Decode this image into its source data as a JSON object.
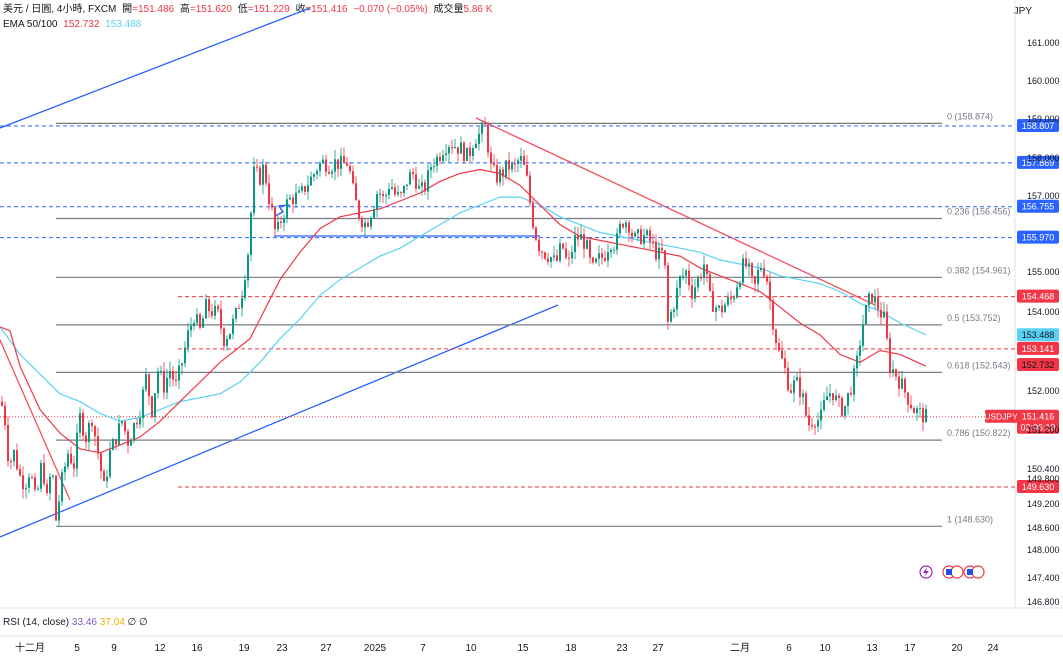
{
  "header": {
    "symbol": "美元 / 日圓, 4小時, FXCM",
    "open_label": "開",
    "open": "=151.486",
    "high_label": "高",
    "high": "=151.620",
    "low_label": "低",
    "low": "=151.229",
    "close_label": "收",
    "close": "=151.416",
    "change": "−0.070 (−0.05%)",
    "volume_label": "成交量",
    "volume": "5.86 K",
    "ema_label": "EMA 50/100",
    "ema50": "152.732",
    "ema100": "153.488"
  },
  "currency": "JPY",
  "rsi": {
    "label": "RSI (14, close)",
    "value1": "33.46",
    "value2": "37.04",
    "extra": "∅ ∅"
  },
  "colors": {
    "up": "#089981",
    "down": "#f23645",
    "ema50": "#f23645",
    "ema100": "#5ad2f4",
    "trend_blue": "#2962ff",
    "trend_red": "#f7525f",
    "fib": "#787b86",
    "hline_blue": "#2962ff",
    "hline_red": "#f23645"
  },
  "chart_data": {
    "type": "candlestick",
    "y_range": [
      146.5,
      162.2
    ],
    "x_ticks": [
      "十二月",
      "5",
      "9",
      "12",
      "16",
      "19",
      "23",
      "27",
      "2025",
      "7",
      "10",
      "15",
      "18",
      "23",
      "27",
      "二月",
      "6",
      "10",
      "13",
      "17",
      "20",
      "24"
    ],
    "y_ticks": [
      "161.000",
      "160.000",
      "159.000",
      "158.000",
      "157.000",
      "155.000",
      "154.000",
      "152.000",
      "151.200",
      "150.400",
      "149.800",
      "149.200",
      "148.600",
      "148.000",
      "147.400",
      "146.800"
    ],
    "close_path": [
      [
        0,
        151.8
      ],
      [
        4,
        151.6
      ],
      [
        9,
        150.2
      ],
      [
        14,
        150.5
      ],
      [
        20,
        149.9
      ],
      [
        25,
        149.7
      ],
      [
        30,
        150.1
      ],
      [
        36,
        149.2
      ],
      [
        42,
        150.3
      ],
      [
        47,
        149.3
      ],
      [
        52,
        150.2
      ],
      [
        56,
        148.8
      ],
      [
        62,
        149.8
      ],
      [
        68,
        150.5
      ],
      [
        74,
        150.2
      ],
      [
        80,
        151.4
      ],
      [
        86,
        150.9
      ],
      [
        92,
        151.4
      ],
      [
        100,
        150.2
      ],
      [
        104,
        149.6
      ],
      [
        110,
        150.5
      ],
      [
        116,
        150.9
      ],
      [
        122,
        151.3
      ],
      [
        128,
        150.8
      ],
      [
        134,
        151.2
      ],
      [
        140,
        151.6
      ],
      [
        146,
        152.4
      ],
      [
        152,
        151.6
      ],
      [
        158,
        152.6
      ],
      [
        164,
        152.2
      ],
      [
        170,
        152.6
      ],
      [
        176,
        152.2
      ],
      [
        182,
        152.8
      ],
      [
        188,
        153.5
      ],
      [
        194,
        154.0
      ],
      [
        200,
        153.6
      ],
      [
        206,
        154.2
      ],
      [
        212,
        154.1
      ],
      [
        218,
        154.0
      ],
      [
        224,
        153.4
      ],
      [
        230,
        153.6
      ],
      [
        236,
        154.0
      ],
      [
        242,
        154.6
      ],
      [
        248,
        155.6
      ],
      [
        254,
        157.6
      ],
      [
        260,
        157.5
      ],
      [
        264,
        157.8
      ],
      [
        268,
        157.1
      ],
      [
        272,
        156.6
      ],
      [
        276,
        156.0
      ],
      [
        282,
        156.5
      ],
      [
        288,
        156.9
      ],
      [
        294,
        157.0
      ],
      [
        300,
        157.0
      ],
      [
        306,
        157.3
      ],
      [
        312,
        157.5
      ],
      [
        318,
        157.8
      ],
      [
        324,
        157.9
      ],
      [
        330,
        157.8
      ],
      [
        336,
        157.9
      ],
      [
        342,
        157.8
      ],
      [
        348,
        157.9
      ],
      [
        354,
        157.0
      ],
      [
        360,
        156.5
      ],
      [
        366,
        156.3
      ],
      [
        372,
        156.7
      ],
      [
        378,
        157.2
      ],
      [
        384,
        156.9
      ],
      [
        390,
        157.4
      ],
      [
        396,
        157.0
      ],
      [
        402,
        157.0
      ],
      [
        408,
        157.5
      ],
      [
        414,
        157.6
      ],
      [
        420,
        157.1
      ],
      [
        426,
        157.3
      ],
      [
        432,
        157.9
      ],
      [
        438,
        158.0
      ],
      [
        444,
        158.3
      ],
      [
        450,
        158.4
      ],
      [
        456,
        158.3
      ],
      [
        462,
        158.2
      ],
      [
        468,
        158.0
      ],
      [
        474,
        158.5
      ],
      [
        480,
        158.6
      ],
      [
        486,
        158.8
      ],
      [
        490,
        157.8
      ],
      [
        496,
        157.5
      ],
      [
        502,
        157.6
      ],
      [
        508,
        157.8
      ],
      [
        514,
        157.7
      ],
      [
        520,
        158.0
      ],
      [
        526,
        157.6
      ],
      [
        532,
        156.5
      ],
      [
        538,
        155.8
      ],
      [
        544,
        155.6
      ],
      [
        550,
        155.5
      ],
      [
        556,
        155.3
      ],
      [
        562,
        155.8
      ],
      [
        568,
        155.2
      ],
      [
        574,
        155.9
      ],
      [
        580,
        156.0
      ],
      [
        586,
        155.8
      ],
      [
        592,
        155.1
      ],
      [
        598,
        155.4
      ],
      [
        604,
        155.5
      ],
      [
        610,
        155.9
      ],
      [
        616,
        155.8
      ],
      [
        622,
        156.4
      ],
      [
        628,
        156.4
      ],
      [
        634,
        155.9
      ],
      [
        640,
        156.0
      ],
      [
        646,
        156.0
      ],
      [
        652,
        155.8
      ],
      [
        658,
        155.5
      ],
      [
        664,
        155.6
      ],
      [
        668,
        153.8
      ],
      [
        674,
        154.3
      ],
      [
        680,
        154.9
      ],
      [
        686,
        155.1
      ],
      [
        692,
        154.6
      ],
      [
        698,
        154.9
      ],
      [
        704,
        155.3
      ],
      [
        710,
        154.4
      ],
      [
        716,
        154.2
      ],
      [
        720,
        154.1
      ],
      [
        726,
        154.3
      ],
      [
        732,
        154.4
      ],
      [
        738,
        154.9
      ],
      [
        744,
        155.3
      ],
      [
        748,
        155.2
      ],
      [
        754,
        154.6
      ],
      [
        760,
        155.3
      ],
      [
        766,
        155.1
      ],
      [
        772,
        154.0
      ],
      [
        778,
        153.1
      ],
      [
        784,
        152.7
      ],
      [
        790,
        152.1
      ],
      [
        796,
        152.3
      ],
      [
        802,
        152.0
      ],
      [
        808,
        151.2
      ],
      [
        814,
        151.4
      ],
      [
        820,
        151.3
      ],
      [
        826,
        151.9
      ],
      [
        832,
        152.1
      ],
      [
        838,
        151.7
      ],
      [
        844,
        151.6
      ],
      [
        850,
        152.1
      ],
      [
        856,
        152.6
      ],
      [
        862,
        153.7
      ],
      [
        868,
        154.3
      ],
      [
        872,
        154.5
      ],
      [
        878,
        154.2
      ],
      [
        884,
        153.9
      ],
      [
        890,
        152.7
      ],
      [
        896,
        152.5
      ],
      [
        902,
        152.2
      ],
      [
        908,
        151.9
      ],
      [
        914,
        151.6
      ],
      [
        920,
        151.5
      ],
      [
        926,
        151.4
      ]
    ],
    "ema50_path": [
      [
        0,
        153.7
      ],
      [
        10,
        153.6
      ],
      [
        20,
        152.7
      ],
      [
        40,
        151.6
      ],
      [
        60,
        151.0
      ],
      [
        80,
        150.6
      ],
      [
        100,
        150.5
      ],
      [
        120,
        150.7
      ],
      [
        140,
        150.9
      ],
      [
        160,
        151.3
      ],
      [
        180,
        151.8
      ],
      [
        200,
        152.3
      ],
      [
        220,
        152.8
      ],
      [
        240,
        153.2
      ],
      [
        250,
        153.4
      ],
      [
        260,
        153.9
      ],
      [
        280,
        154.9
      ],
      [
        300,
        155.6
      ],
      [
        320,
        156.2
      ],
      [
        340,
        156.5
      ],
      [
        360,
        156.6
      ],
      [
        380,
        156.7
      ],
      [
        400,
        156.9
      ],
      [
        420,
        157.1
      ],
      [
        440,
        157.4
      ],
      [
        460,
        157.6
      ],
      [
        480,
        157.7
      ],
      [
        500,
        157.6
      ],
      [
        520,
        157.3
      ],
      [
        540,
        156.8
      ],
      [
        560,
        156.3
      ],
      [
        580,
        156.0
      ],
      [
        600,
        155.9
      ],
      [
        620,
        155.8
      ],
      [
        640,
        155.7
      ],
      [
        660,
        155.6
      ],
      [
        680,
        155.5
      ],
      [
        700,
        155.2
      ],
      [
        720,
        155.0
      ],
      [
        740,
        154.8
      ],
      [
        760,
        154.6
      ],
      [
        780,
        154.2
      ],
      [
        800,
        153.8
      ],
      [
        820,
        153.5
      ],
      [
        840,
        153.0
      ],
      [
        860,
        152.8
      ],
      [
        880,
        153.1
      ],
      [
        900,
        153.0
      ],
      [
        926,
        152.7
      ]
    ],
    "ema100_path": [
      [
        0,
        153.7
      ],
      [
        20,
        153.0
      ],
      [
        40,
        152.5
      ],
      [
        60,
        152.0
      ],
      [
        80,
        151.8
      ],
      [
        100,
        151.5
      ],
      [
        120,
        151.3
      ],
      [
        140,
        151.4
      ],
      [
        160,
        151.6
      ],
      [
        180,
        151.8
      ],
      [
        200,
        151.9
      ],
      [
        220,
        152.0
      ],
      [
        240,
        152.3
      ],
      [
        260,
        152.8
      ],
      [
        280,
        153.4
      ],
      [
        300,
        153.9
      ],
      [
        320,
        154.5
      ],
      [
        340,
        154.9
      ],
      [
        360,
        155.2
      ],
      [
        380,
        155.5
      ],
      [
        400,
        155.7
      ],
      [
        420,
        156.0
      ],
      [
        440,
        156.3
      ],
      [
        460,
        156.6
      ],
      [
        480,
        156.8
      ],
      [
        500,
        157.0
      ],
      [
        520,
        157.0
      ],
      [
        540,
        156.8
      ],
      [
        560,
        156.5
      ],
      [
        580,
        156.3
      ],
      [
        600,
        156.1
      ],
      [
        620,
        156.0
      ],
      [
        640,
        155.9
      ],
      [
        660,
        155.8
      ],
      [
        680,
        155.7
      ],
      [
        700,
        155.6
      ],
      [
        720,
        155.4
      ],
      [
        740,
        155.3
      ],
      [
        760,
        155.2
      ],
      [
        780,
        155.0
      ],
      [
        800,
        154.9
      ],
      [
        820,
        154.8
      ],
      [
        840,
        154.6
      ],
      [
        860,
        154.3
      ],
      [
        880,
        154.1
      ],
      [
        900,
        153.8
      ],
      [
        926,
        153.5
      ]
    ],
    "fibonacci": [
      {
        "label": "0 (158.874)",
        "price": 158.874
      },
      {
        "label": "0.236 (156.456)",
        "price": 156.456
      },
      {
        "label": "0.382 (154.961)",
        "price": 154.961
      },
      {
        "label": "0.5 (153.752)",
        "price": 153.752
      },
      {
        "label": "0.618 (152.543)",
        "price": 152.543
      },
      {
        "label": "0.786 (150.822)",
        "price": 150.822
      },
      {
        "label": "1 (148.630)",
        "price": 148.63
      }
    ],
    "horizontal_lines": [
      {
        "price": 158.807,
        "label": "158.807",
        "style": "blue-dashed"
      },
      {
        "price": 157.869,
        "label": "157.869",
        "style": "blue-dashed"
      },
      {
        "price": 156.755,
        "label": "156.755",
        "style": "blue-dashed"
      },
      {
        "price": 155.97,
        "label": "155.970",
        "style": "blue-dashed"
      },
      {
        "price": 154.468,
        "label": "154.468",
        "style": "red-dashed"
      },
      {
        "price": 153.141,
        "label": "153.141",
        "style": "red-dashed"
      },
      {
        "price": 149.63,
        "label": "149.630",
        "style": "red-dashed"
      }
    ],
    "ema_labels": [
      {
        "price": 153.488,
        "label": "153.488",
        "color": "#5ad2f4"
      },
      {
        "price": 152.732,
        "label": "152.732",
        "color": "#f23645"
      }
    ],
    "last_price": {
      "symbol": "USDJPY",
      "price": 151.416,
      "label": "151.416",
      "countdown": "02:06:19"
    }
  }
}
